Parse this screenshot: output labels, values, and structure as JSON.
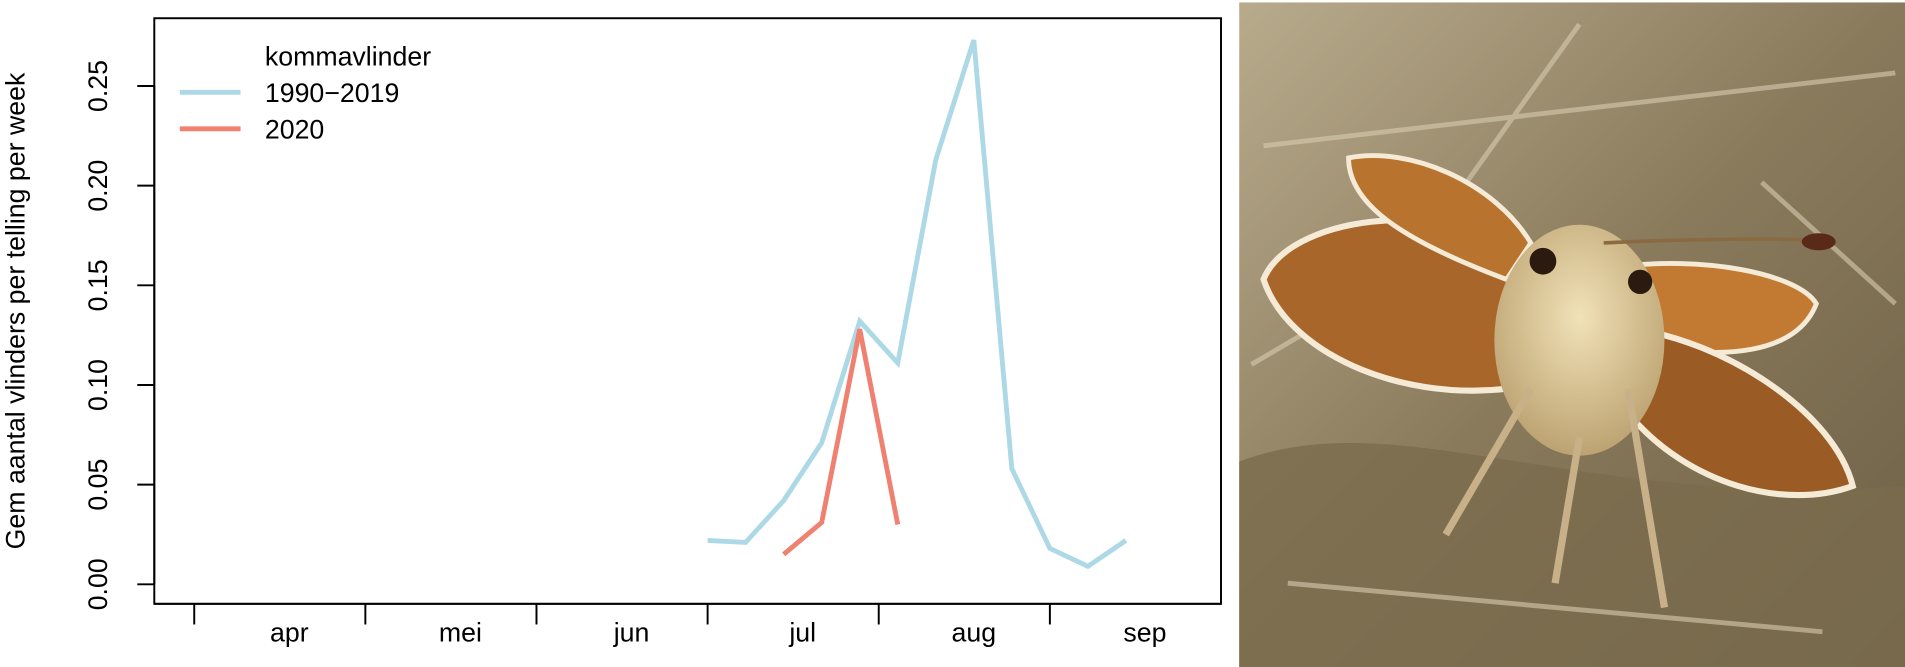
{
  "chart_data": {
    "type": "line",
    "ylabel": "Gem aantal vlinders per telling per week",
    "legend_title": "kommavlinder",
    "legend": "topleft",
    "xlim": [
      -1.05,
      27.0
    ],
    "xticks": [
      0,
      4.5,
      9,
      13.5,
      18,
      22.5
    ],
    "xlabels": [
      {
        "value": 2.5,
        "label": "apr"
      },
      {
        "value": 7,
        "label": "mei"
      },
      {
        "value": 11.5,
        "label": "jun"
      },
      {
        "value": 16,
        "label": "jul"
      },
      {
        "value": 20.5,
        "label": "aug"
      },
      {
        "value": 25,
        "label": "sep"
      }
    ],
    "ylim": [
      -0.0098,
      0.284
    ],
    "yticks": [
      {
        "value": 0,
        "label": "0.00"
      },
      {
        "value": 0.05,
        "label": "0.05"
      },
      {
        "value": 0.1,
        "label": "0.10"
      },
      {
        "value": 0.15,
        "label": "0.15"
      },
      {
        "value": 0.2,
        "label": "0.20"
      },
      {
        "value": 0.25,
        "label": "0.25"
      }
    ],
    "series": [
      {
        "name": "1990−2019",
        "color": "#add8e6",
        "x": [
          13.5,
          14.5,
          15.5,
          16.5,
          17.5,
          18.5,
          19.5,
          20.5,
          21.5,
          22.5,
          23.5,
          24.5
        ],
        "values": [
          0.022,
          0.021,
          0.042,
          0.071,
          0.132,
          0.111,
          0.213,
          0.273,
          0.058,
          0.018,
          0.009,
          0.022
        ]
      },
      {
        "name": "2020",
        "color": "#f08070",
        "x": [
          15.5,
          16.5,
          17.5,
          18.5
        ],
        "values": [
          0.015,
          0.031,
          0.128,
          0.03
        ]
      }
    ]
  }
}
